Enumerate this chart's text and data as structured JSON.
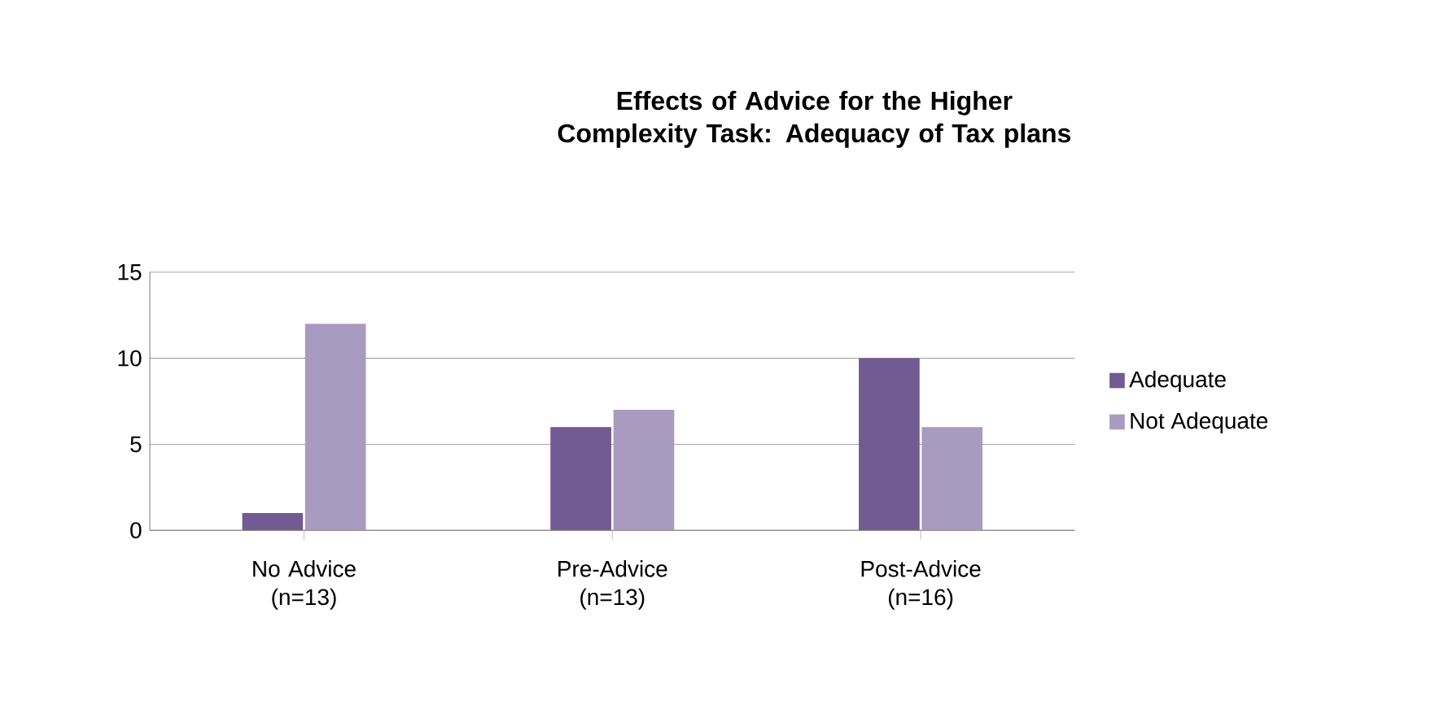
{
  "chart_data": {
    "type": "bar",
    "title": "Effects of  Advice for the Higher Complexity Task: Adequacy of Tax plans",
    "categories": [
      "No Advice (n=13)",
      "Pre-Advice (n=13)",
      "Post-Advice (n=16)"
    ],
    "series": [
      {
        "name": "Adequate",
        "color": "#725a92",
        "values": [
          1,
          6,
          10
        ]
      },
      {
        "name": "Not Adequate",
        "color": "#a99bc0",
        "values": [
          12,
          7,
          6
        ]
      }
    ],
    "ylim": [
      0,
      15
    ],
    "yticks": [
      0,
      5,
      10,
      15
    ],
    "grid": "y",
    "legend": "right"
  }
}
